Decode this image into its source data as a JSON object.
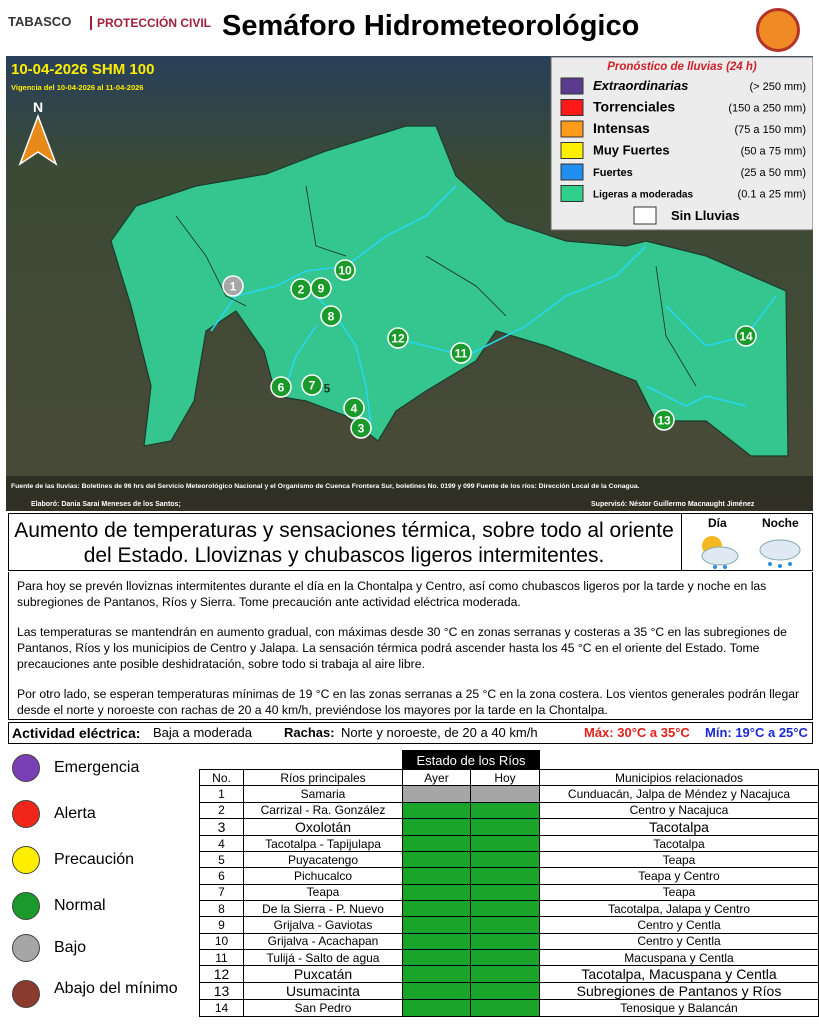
{
  "header": {
    "logo_state": "TABASCO",
    "logo_agency": "PROTECCIÓN CIVIL",
    "title": "Semáforo Hidrometeorológico"
  },
  "map": {
    "date_label": "10-04-2026 SHM 100",
    "validity": "Vigencia del 10-04-2026 al 11-04-2026",
    "north": "N",
    "legend": {
      "title": "Pronóstico de lluvias (24 h)",
      "items": [
        {
          "label": "Extraordinarias",
          "range": "(> 250 mm)",
          "color": "#5b3a8e"
        },
        {
          "label": "Torrenciales",
          "range": "(150 a 250 mm)",
          "color": "#ff1a1a"
        },
        {
          "label": "Intensas",
          "range": "(75 a 150 mm)",
          "color": "#ff9a1a"
        },
        {
          "label": "Muy Fuertes",
          "range": "(50 a 75 mm)",
          "color": "#ffee00"
        },
        {
          "label": "Fuertes",
          "range": "(25 a 50 mm)",
          "color": "#1e8ff0"
        },
        {
          "label": "Ligeras a moderadas",
          "range": "(0.1 a 25 mm)",
          "color": "#2fcf8c"
        },
        {
          "label": "Sin Lluvias",
          "color": "#ffffff"
        }
      ]
    },
    "markers": [
      {
        "label": "1",
        "color": "#a6a6a6"
      },
      {
        "label": "2",
        "color": "#1a9a2a"
      },
      {
        "label": "3",
        "color": "#1a9a2a"
      },
      {
        "label": "4",
        "color": "#1a9a2a"
      },
      {
        "label": "5"
      },
      {
        "label": "6",
        "color": "#1a9a2a"
      },
      {
        "label": "7",
        "color": "#1a9a2a"
      },
      {
        "label": "8",
        "color": "#1a9a2a"
      },
      {
        "label": "9",
        "color": "#1a9a2a"
      },
      {
        "label": "10",
        "color": "#1a9a2a"
      },
      {
        "label": "11",
        "color": "#1a9a2a"
      },
      {
        "label": "12",
        "color": "#1a9a2a"
      },
      {
        "label": "13",
        "color": "#1a9a2a"
      },
      {
        "label": "14",
        "color": "#1a9a2a"
      }
    ],
    "source": "Fuente de las lluvias: Boletines de 96 hrs del Servicio Meteorológico Nacional y el Organismo de Cuenca Frontera Sur, boletines No. 0199 y 099 Fuente de los ríos: Dirección Local de la Conagua.",
    "prepared_by": "Elaboró: Dania Sarai Meneses de los Santos;",
    "supervised_by": "Supervisó: Néstor Guillermo Macnaught Jiménez"
  },
  "summary": {
    "text": "Aumento de temperaturas y sensaciones térmica, sobre todo al oriente del Estado. Lloviznas y chubascos ligeros intermitentes.",
    "day": "Día",
    "night": "Noche"
  },
  "paragraphs": [
    "Para hoy se prevén lloviznas intermitentes durante el día en la Chontalpa y Centro, así como chubascos ligeros por la tarde y noche en las subregiones de Pantanos, Ríos y Sierra. Tome precaución ante actividad eléctrica moderada.",
    "Las temperaturas se mantendrán en aumento gradual, con máximas desde 30 °C  en zonas serranas y costeras a 35 °C en las subregiones de Pantanos, Ríos y los municipios de Centro y Jalapa. La sensación térmica podrá ascender hasta los 45 °C en el oriente del Estado. Tome precauciones ante posible deshidratación, sobre todo si trabaja al aire libre.",
    "Por otro lado, se esperan temperaturas mínimas de 19 °C en las zonas serranas a 25 °C en la zona costera. Los vientos generales podrán llegar desde el norte y noroeste con rachas de 20 a 40 km/h, previéndose los mayores por la tarde en la Chontalpa."
  ],
  "activity": {
    "label": "Actividad eléctrica:",
    "value": "Baja a moderada",
    "gusts_label": "Rachas:",
    "gusts": "Norte y noroeste, de 20 a 40  km/h",
    "max": "Máx: 30°C a 35°C",
    "min": "Mín: 19°C a 25°C"
  },
  "status_legend": [
    {
      "label": "Emergencia",
      "color": "#7b3fb5"
    },
    {
      "label": "Alerta",
      "color": "#f0261a"
    },
    {
      "label": "Precaución",
      "color": "#ffee00"
    },
    {
      "label": "Normal",
      "color": "#1a9a2a"
    },
    {
      "label": "Bajo",
      "color": "#a6a6a6"
    },
    {
      "label": "Abajo del mínimo",
      "color": "#8b3a2e"
    }
  ],
  "table": {
    "title": "Estado de los Ríos",
    "columns": [
      "No.",
      "Ríos principales",
      "Ayer",
      "Hoy",
      "Municipios relacionados"
    ],
    "rows": [
      {
        "no": "1",
        "river": "Samaria",
        "ayer": "#a6a6a6",
        "hoy": "#a6a6a6",
        "municipios": "Cunduacán, Jalpa de Méndez y Nacajuca"
      },
      {
        "no": "2",
        "river": "Carrizal - Ra. González",
        "ayer": "#1aa52a",
        "hoy": "#1aa52a",
        "municipios": "Centro y Nacajuca"
      },
      {
        "no": "3",
        "river": "Oxolotán",
        "ayer": "#1aa52a",
        "hoy": "#1aa52a",
        "municipios": "Tacotalpa"
      },
      {
        "no": "4",
        "river": "Tacotalpa - Tapijulapa",
        "ayer": "#1aa52a",
        "hoy": "#1aa52a",
        "municipios": "Tacotalpa"
      },
      {
        "no": "5",
        "river": "Puyacatengo",
        "ayer": "#1aa52a",
        "hoy": "#1aa52a",
        "municipios": "Teapa"
      },
      {
        "no": "6",
        "river": "Pichucalco",
        "ayer": "#1aa52a",
        "hoy": "#1aa52a",
        "municipios": "Teapa y Centro"
      },
      {
        "no": "7",
        "river": "Teapa",
        "ayer": "#1aa52a",
        "hoy": "#1aa52a",
        "municipios": "Teapa"
      },
      {
        "no": "8",
        "river": "De la Sierra - P. Nuevo",
        "ayer": "#1aa52a",
        "hoy": "#1aa52a",
        "municipios": "Tacotalpa, Jalapa y Centro"
      },
      {
        "no": "9",
        "river": "Grijalva - Gaviotas",
        "ayer": "#1aa52a",
        "hoy": "#1aa52a",
        "municipios": "Centro y Centla"
      },
      {
        "no": "10",
        "river": "Grijalva - Acachapan",
        "ayer": "#1aa52a",
        "hoy": "#1aa52a",
        "municipios": "Centro y Centla"
      },
      {
        "no": "11",
        "river": "Tulijá - Salto de agua",
        "ayer": "#1aa52a",
        "hoy": "#1aa52a",
        "municipios": "Macuspana y Centla"
      },
      {
        "no": "12",
        "river": "Puxcatán",
        "ayer": "#1aa52a",
        "hoy": "#1aa52a",
        "municipios": "Tacotalpa, Macuspana y Centla"
      },
      {
        "no": "13",
        "river": "Usumacinta",
        "ayer": "#1aa52a",
        "hoy": "#1aa52a",
        "municipios": "Subregiones de Pantanos y Ríos"
      },
      {
        "no": "14",
        "river": "San Pedro",
        "ayer": "#1aa52a",
        "hoy": "#1aa52a",
        "municipios": "Tenosique y Balancán"
      }
    ]
  }
}
